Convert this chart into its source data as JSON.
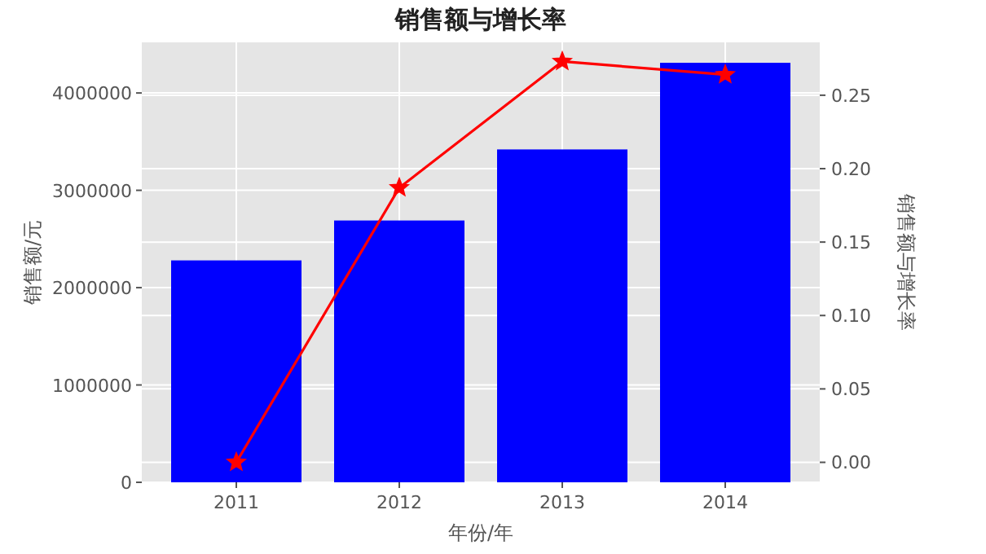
{
  "chart_data": {
    "type": "bar",
    "title": "销售额与增长率",
    "xlabel": "年份/年",
    "ylabel": "销售额/元",
    "y2label": "销售额与增长率",
    "categories": [
      "2011",
      "2012",
      "2013",
      "2014"
    ],
    "series": [
      {
        "color": "#0000ff",
        "values": [
          2280000,
          2690000,
          3420000,
          4310000
        ]
      },
      {
        "type": "line",
        "axis": "y2",
        "color": "#ff0000",
        "marker": "star",
        "values": [
          0.0,
          0.187,
          0.273,
          0.264
        ]
      }
    ],
    "ylim": [
      0,
      4520000
    ],
    "yticks": [
      0,
      1000000,
      2000000,
      3000000,
      4000000
    ],
    "y2lim": [
      -0.0136,
      0.286
    ],
    "y2ticks": [
      {
        "value": 0,
        "label": "0.00"
      },
      {
        "value": 0.05,
        "label": "0.05"
      },
      {
        "value": 0.1,
        "label": "0.10"
      },
      {
        "value": 0.15,
        "label": "0.15"
      },
      {
        "value": 0.2,
        "label": "0.20"
      },
      {
        "value": 0.25,
        "label": "0.25"
      }
    ],
    "grid": true
  }
}
